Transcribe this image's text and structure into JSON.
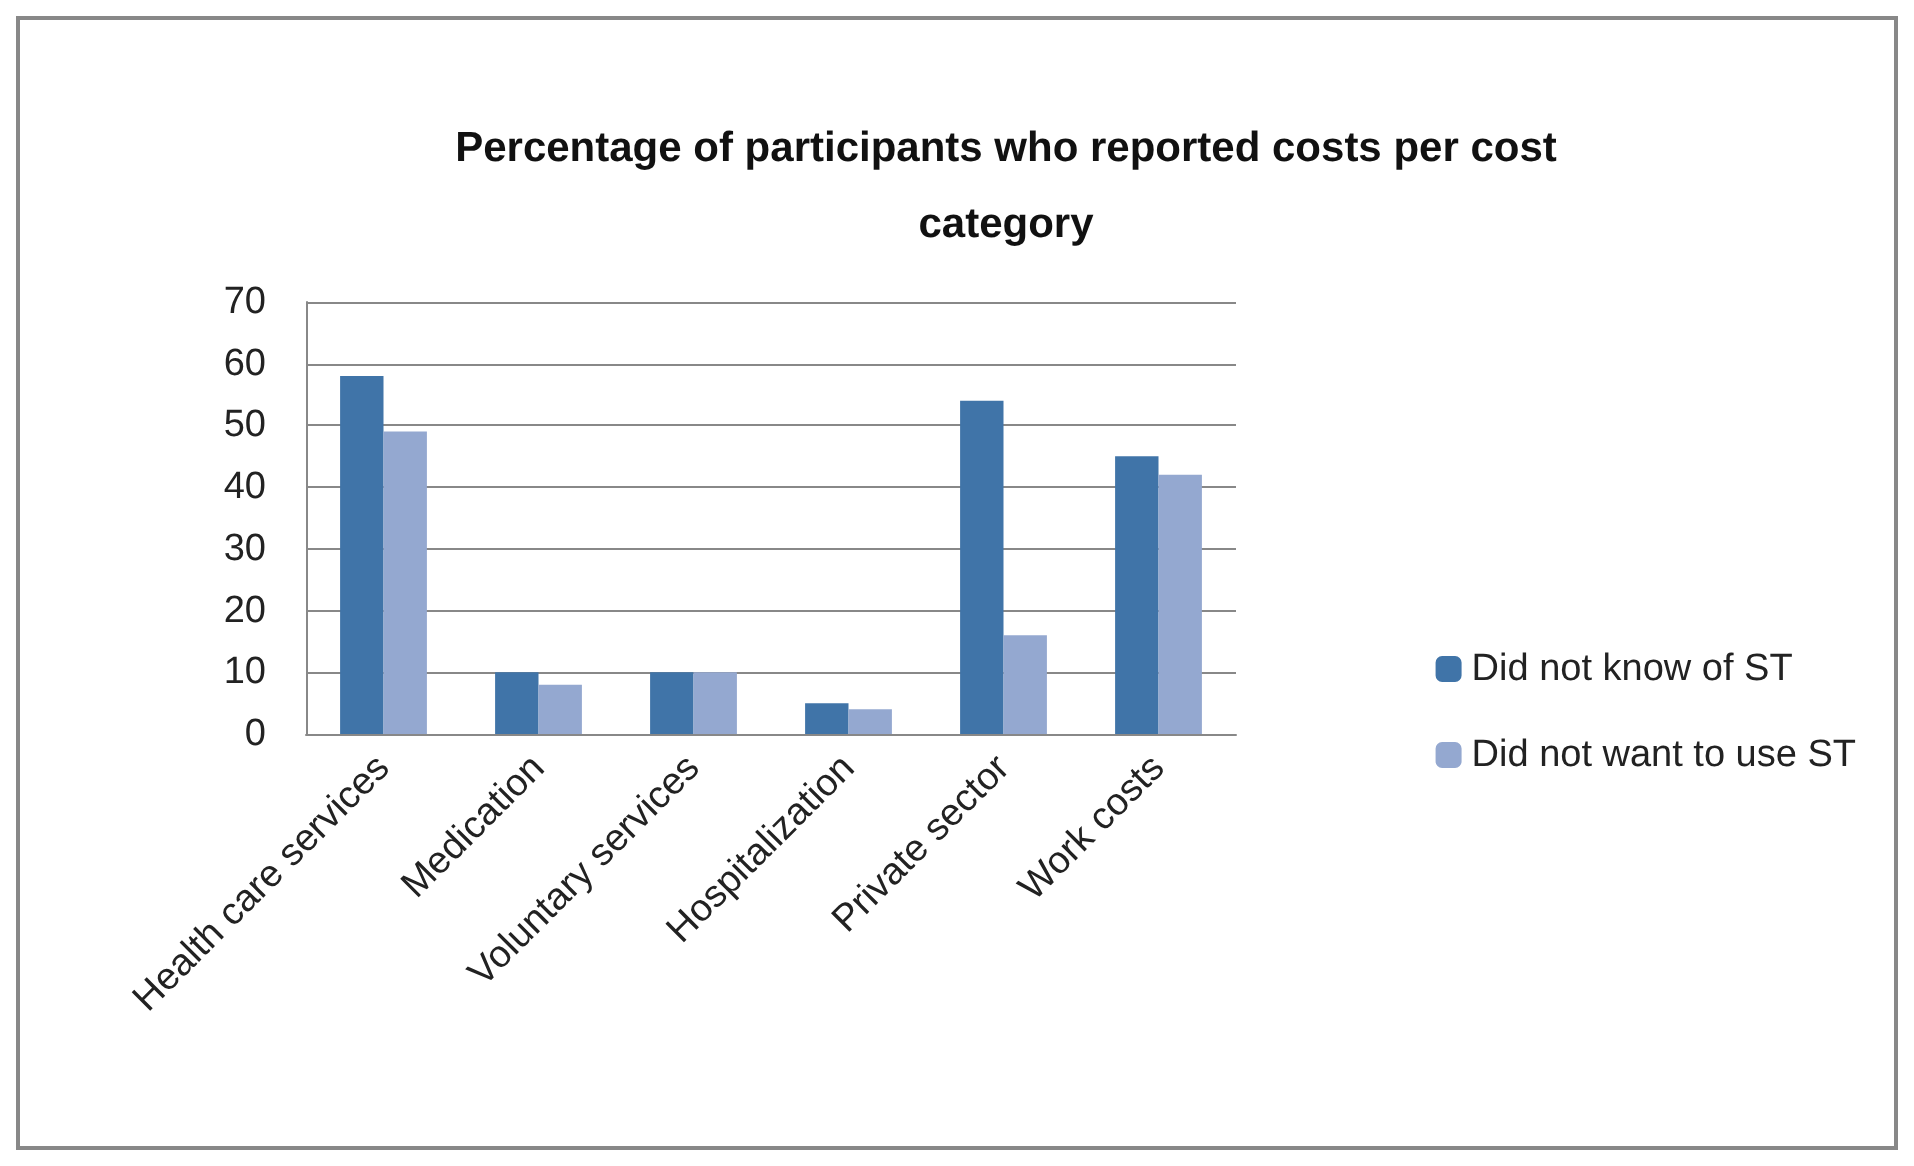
{
  "chart_data": {
    "type": "bar",
    "title": "Percentage of participants who reported costs per cost\ncategory",
    "categories": [
      "Health care services",
      "Medication",
      "Voluntary services",
      "Hospitalization",
      "Private sector",
      "Work costs"
    ],
    "series": [
      {
        "name": "Did not know of ST",
        "color": "#4074a8",
        "values": [
          58,
          10,
          10,
          5,
          54,
          45
        ]
      },
      {
        "name": "Did not want to use ST",
        "color": "#94a8d0",
        "values": [
          49,
          8,
          10,
          4,
          16,
          42
        ]
      }
    ],
    "ylim": [
      0,
      70
    ],
    "yticks": [
      0,
      10,
      20,
      30,
      40,
      50,
      60,
      70
    ],
    "grid": "y",
    "legend": "right"
  }
}
